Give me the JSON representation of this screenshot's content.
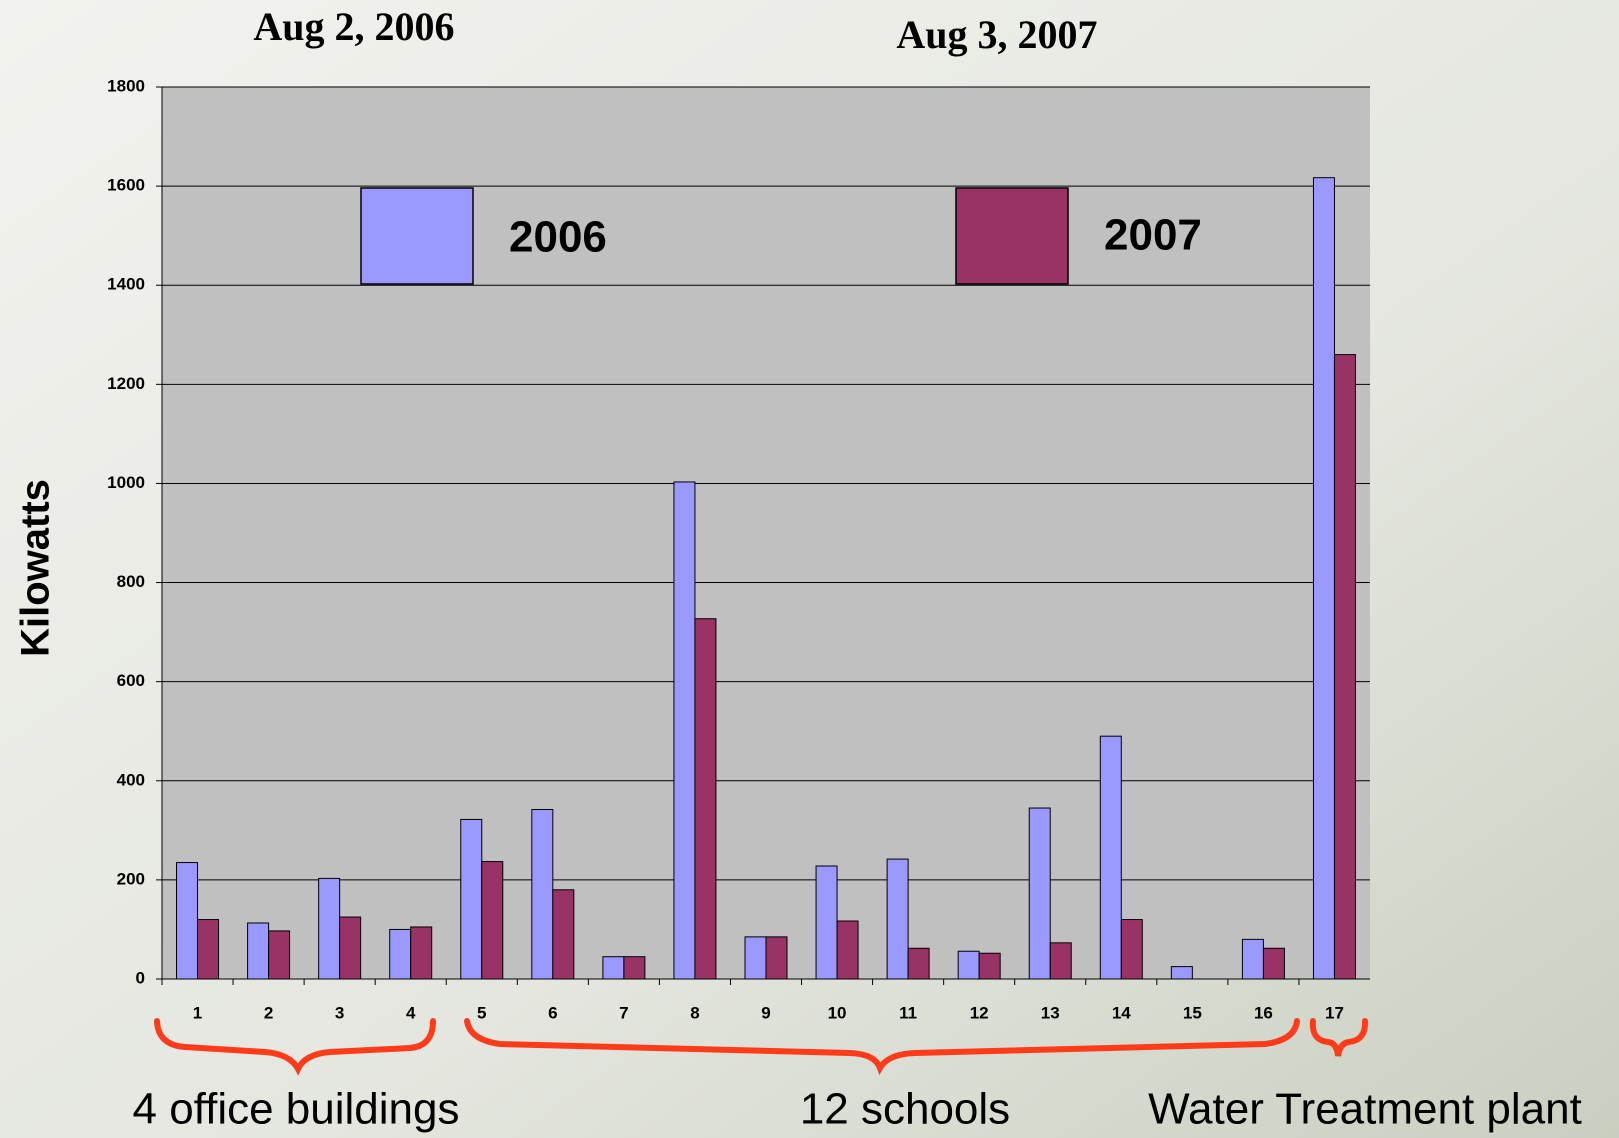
{
  "chart_data": {
    "type": "bar",
    "annotations": [
      "Aug 2, 2006",
      "Aug 3, 2007",
      "4 office buildings",
      "12 schools",
      "Water Treatment plant"
    ],
    "y_label": "Kilowatts",
    "categories": [
      "1",
      "2",
      "3",
      "4",
      "5",
      "6",
      "7",
      "8",
      "9",
      "10",
      "11",
      "12",
      "13",
      "14",
      "15",
      "16",
      "17"
    ],
    "series": [
      {
        "name": "2006",
        "color": "#9999ff",
        "values": [
          235,
          113,
          203,
          100,
          322,
          342,
          45,
          1003,
          85,
          228,
          242,
          56,
          345,
          490,
          25,
          80,
          1617
        ]
      },
      {
        "name": "2007",
        "color": "#993366",
        "values": [
          120,
          97,
          125,
          105,
          237,
          180,
          45,
          727,
          85,
          117,
          62,
          52,
          73,
          120,
          0,
          62,
          1260
        ]
      }
    ],
    "ylim": [
      0,
      1800
    ],
    "yticks": [
      0,
      200,
      400,
      600,
      800,
      1000,
      1200,
      1400,
      1600,
      1800
    ],
    "grid": true
  }
}
